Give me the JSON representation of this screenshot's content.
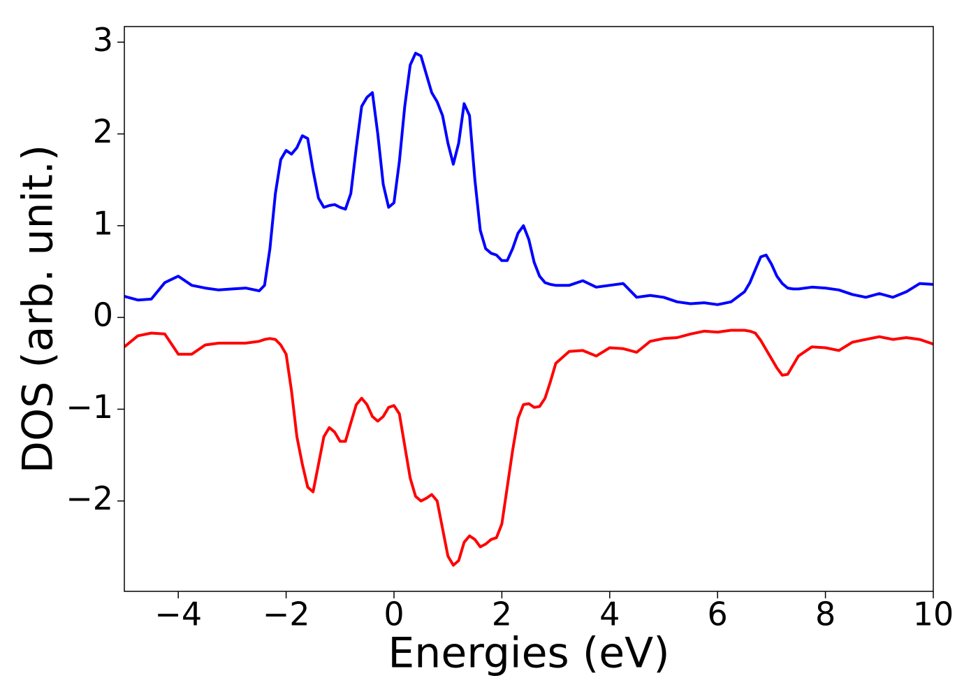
{
  "chart_data": {
    "type": "line",
    "xlabel": "Energies (eV)",
    "ylabel": "DOS (arb. unit.)",
    "x": [
      -5,
      -4.75,
      -4.5,
      -4.25,
      -4.0,
      -3.75,
      -3.5,
      -3.25,
      -3.0,
      -2.75,
      -2.5,
      -2.4,
      -2.3,
      -2.2,
      -2.1,
      -2.0,
      -1.9,
      -1.8,
      -1.7,
      -1.6,
      -1.5,
      -1.4,
      -1.3,
      -1.2,
      -1.1,
      -1.0,
      -0.9,
      -0.8,
      -0.7,
      -0.6,
      -0.5,
      -0.4,
      -0.3,
      -0.2,
      -0.1,
      0,
      0.1,
      0.2,
      0.3,
      0.4,
      0.5,
      0.6,
      0.7,
      0.8,
      0.9,
      1.0,
      1.1,
      1.2,
      1.3,
      1.4,
      1.5,
      1.6,
      1.7,
      1.8,
      1.9,
      2.0,
      2.1,
      2.2,
      2.3,
      2.4,
      2.5,
      2.6,
      2.7,
      2.8,
      2.9,
      3.0,
      3.25,
      3.5,
      3.75,
      4.0,
      4.25,
      4.5,
      4.75,
      5.0,
      5.25,
      5.5,
      5.75,
      6.0,
      6.25,
      6.5,
      6.6,
      6.7,
      6.8,
      6.9,
      7.0,
      7.1,
      7.2,
      7.3,
      7.4,
      7.5,
      7.75,
      8.0,
      8.25,
      8.5,
      8.75,
      9.0,
      9.25,
      9.5,
      9.75,
      10.0
    ],
    "series": [
      {
        "color": "#0000ff",
        "values": [
          0.23,
          0.19,
          0.2,
          0.38,
          0.45,
          0.35,
          0.32,
          0.3,
          0.31,
          0.32,
          0.29,
          0.35,
          0.75,
          1.35,
          1.72,
          1.82,
          1.78,
          1.85,
          1.98,
          1.95,
          1.6,
          1.3,
          1.2,
          1.22,
          1.23,
          1.2,
          1.18,
          1.35,
          1.85,
          2.3,
          2.4,
          2.45,
          2.0,
          1.45,
          1.2,
          1.25,
          1.7,
          2.3,
          2.75,
          2.88,
          2.85,
          2.65,
          2.45,
          2.35,
          2.2,
          1.9,
          1.67,
          1.9,
          2.33,
          2.2,
          1.5,
          0.95,
          0.75,
          0.7,
          0.68,
          0.62,
          0.62,
          0.75,
          0.92,
          1.0,
          0.85,
          0.6,
          0.45,
          0.38,
          0.36,
          0.35,
          0.35,
          0.4,
          0.33,
          0.35,
          0.37,
          0.22,
          0.24,
          0.22,
          0.17,
          0.15,
          0.16,
          0.14,
          0.17,
          0.28,
          0.38,
          0.52,
          0.66,
          0.68,
          0.58,
          0.45,
          0.37,
          0.32,
          0.31,
          0.31,
          0.33,
          0.32,
          0.3,
          0.25,
          0.22,
          0.26,
          0.22,
          0.28,
          0.37,
          0.36
        ]
      },
      {
        "color": "#ff0000",
        "values": [
          -0.32,
          -0.2,
          -0.17,
          -0.18,
          -0.4,
          -0.4,
          -0.3,
          -0.28,
          -0.28,
          -0.28,
          -0.26,
          -0.24,
          -0.23,
          -0.24,
          -0.3,
          -0.4,
          -0.8,
          -1.3,
          -1.6,
          -1.85,
          -1.9,
          -1.6,
          -1.3,
          -1.2,
          -1.25,
          -1.35,
          -1.35,
          -1.15,
          -0.95,
          -0.88,
          -0.95,
          -1.08,
          -1.13,
          -1.08,
          -0.98,
          -0.96,
          -1.05,
          -1.4,
          -1.75,
          -1.95,
          -2.0,
          -1.97,
          -1.93,
          -2.0,
          -2.3,
          -2.6,
          -2.7,
          -2.65,
          -2.45,
          -2.38,
          -2.42,
          -2.5,
          -2.47,
          -2.42,
          -2.4,
          -2.25,
          -1.85,
          -1.45,
          -1.1,
          -0.95,
          -0.94,
          -0.98,
          -0.97,
          -0.88,
          -0.7,
          -0.5,
          -0.37,
          -0.36,
          -0.42,
          -0.33,
          -0.34,
          -0.38,
          -0.26,
          -0.23,
          -0.22,
          -0.18,
          -0.15,
          -0.16,
          -0.14,
          -0.14,
          -0.15,
          -0.17,
          -0.25,
          -0.35,
          -0.45,
          -0.55,
          -0.63,
          -0.62,
          -0.52,
          -0.42,
          -0.32,
          -0.33,
          -0.36,
          -0.27,
          -0.24,
          -0.21,
          -0.24,
          -0.22,
          -0.24,
          -0.29
        ]
      }
    ],
    "xlim": [
      -5,
      10
    ],
    "xticks": [
      {
        "value": -4,
        "label": "−4"
      },
      {
        "value": -2,
        "label": "−2"
      },
      0,
      2,
      4,
      6,
      8,
      10
    ],
    "ylim": [
      -2.985,
      3.17
    ],
    "yticks": [
      {
        "value": -2,
        "label": "−2"
      },
      {
        "value": -1,
        "label": "−1"
      },
      0,
      1,
      2,
      3
    ]
  }
}
